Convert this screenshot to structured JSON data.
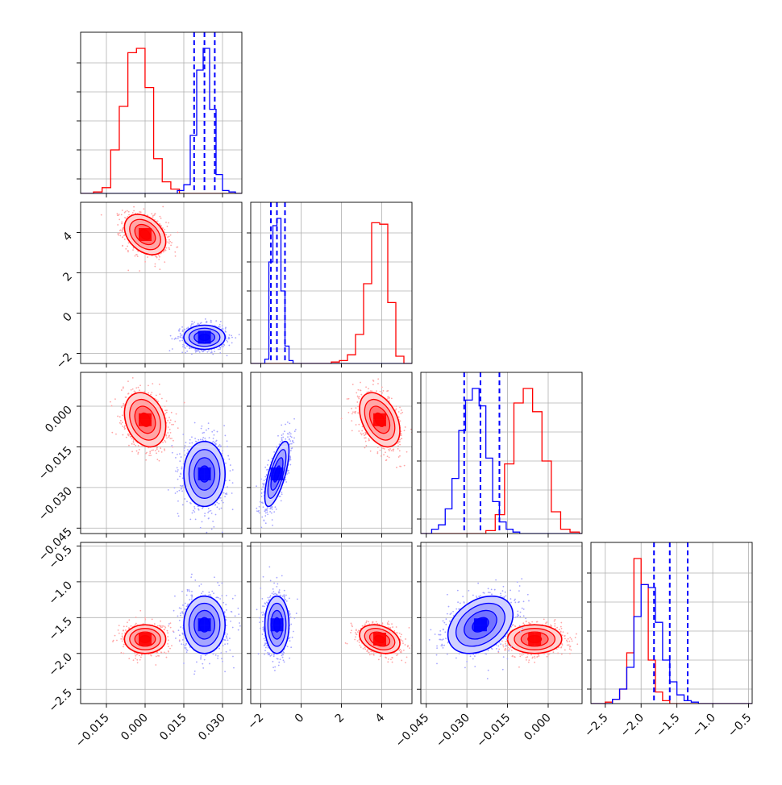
{
  "chart_data": {
    "type": "corner",
    "params": [
      {
        "key": "p1",
        "range": [
          -0.025,
          0.0375
        ],
        "ticks": [
          -0.015,
          0.0,
          0.015,
          0.03
        ],
        "tick_labels": [
          "−0.015",
          "0.000",
          "0.015",
          "0.030"
        ]
      },
      {
        "key": "p2",
        "range": [
          -2.5,
          5.5
        ],
        "ticks": [
          -2,
          0,
          2,
          4
        ],
        "tick_labels": [
          "−2",
          "0",
          "2",
          "4"
        ]
      },
      {
        "key": "p3",
        "range": [
          -0.047,
          0.0125
        ],
        "ticks": [
          -0.045,
          -0.03,
          -0.015,
          0.0
        ],
        "tick_labels": [
          "−0.045",
          "−0.030",
          "−0.015",
          "0.000"
        ]
      },
      {
        "key": "p4",
        "range": [
          -2.7,
          -0.45
        ],
        "ticks": [
          -2.5,
          -2.0,
          -1.5,
          -1.0,
          -0.5
        ],
        "tick_labels": [
          "−2.5",
          "−2.0",
          "−1.5",
          "−1.0",
          "−0.5"
        ]
      }
    ],
    "series": [
      {
        "color": "#ff0000",
        "means": [
          0.0,
          3.9,
          -0.005,
          -1.8
        ],
        "sds": [
          0.004,
          0.5,
          0.005,
          0.1
        ],
        "corr": [
          [
            0,
            1,
            -0.35
          ],
          [
            0,
            2,
            -0.25
          ],
          [
            1,
            2,
            -0.4
          ],
          [
            0,
            3,
            0.0
          ],
          [
            1,
            3,
            -0.3
          ],
          [
            2,
            3,
            0.0
          ]
        ],
        "hist": {
          "p1": {
            "start": -0.02,
            "step": 0.00333,
            "counts": [
              0.01,
              0.04,
              0.3,
              0.6,
              0.97,
              1.0,
              0.73,
              0.24,
              0.08,
              0.03,
              0.0,
              0.0
            ]
          },
          "p2": {
            "start": 1.5,
            "step": 0.4,
            "counts": [
              0.01,
              0.02,
              0.06,
              0.2,
              0.55,
              0.97,
              0.96,
              0.42,
              0.05,
              0.0
            ]
          },
          "p3": {
            "start": -0.023,
            "step": 0.00345,
            "counts": [
              0.02,
              0.13,
              0.48,
              0.9,
              1.0,
              0.84,
              0.5,
              0.15,
              0.03,
              0.01
            ]
          },
          "p4": {
            "start": -2.5,
            "step": 0.1,
            "counts": [
              0.01,
              0.03,
              0.1,
              0.35,
              1.0,
              0.82,
              0.3,
              0.08,
              0.02,
              0.0,
              0.0
            ]
          }
        }
      },
      {
        "color": "#0000ff",
        "means": [
          0.023,
          -1.2,
          -0.025,
          -1.6
        ],
        "sds": [
          0.004,
          0.3,
          0.006,
          0.2
        ],
        "corr": [
          [
            0,
            1,
            0.0
          ],
          [
            0,
            2,
            0.0
          ],
          [
            1,
            2,
            0.7
          ],
          [
            0,
            3,
            0.0
          ],
          [
            1,
            3,
            0.0
          ],
          [
            2,
            3,
            0.35
          ]
        ],
        "hist": {
          "p1": {
            "start": 0.0125,
            "step": 0.0025,
            "counts": [
              0.02,
              0.06,
              0.4,
              0.85,
              1.0,
              0.58,
              0.13,
              0.02,
              0.01
            ]
          },
          "p2": {
            "start": -1.8,
            "step": 0.2,
            "counts": [
              0.03,
              0.7,
              0.95,
              1.0,
              0.5,
              0.12,
              0.02
            ]
          },
          "p3": {
            "start": -0.043,
            "step": 0.0025,
            "counts": [
              0.03,
              0.06,
              0.17,
              0.38,
              0.71,
              0.92,
              1.0,
              0.88,
              0.52,
              0.22,
              0.08,
              0.03,
              0.01
            ]
          },
          "p4": {
            "start": -2.4,
            "step": 0.1,
            "counts": [
              0.03,
              0.1,
              0.25,
              0.6,
              0.82,
              0.8,
              0.56,
              0.3,
              0.15,
              0.06,
              0.02,
              0.01
            ]
          }
        }
      }
    ],
    "quantile_lines": {
      "color": "#0000ff",
      "p1": [
        0.019,
        0.023,
        0.027
      ],
      "p2": [
        -1.5,
        -1.2,
        -0.8
      ],
      "p3": [
        -0.031,
        -0.025,
        -0.018
      ],
      "p4": [
        -1.82,
        -1.6,
        -1.35
      ]
    },
    "diag_y_ticks": [
      0.1,
      0.3,
      0.5,
      0.7,
      0.9
    ],
    "ticks_on_left_from_row": 1,
    "grid": true
  }
}
